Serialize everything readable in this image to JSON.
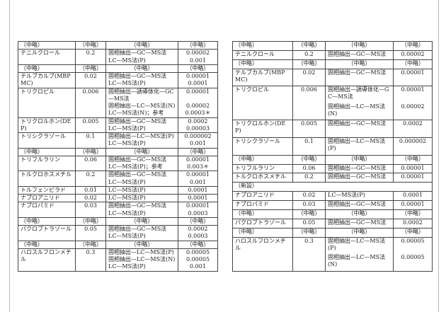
{
  "tables": [
    {
      "rows": [
        {
          "cells": [
            "（中略）",
            "（中略）",
            "（中略）",
            "（中略）"
          ]
        },
        {
          "name": "テニルクロール",
          "value": "0.2",
          "entries": [
            [
              "固相抽出—GC—MS法",
              "0.00002"
            ],
            [
              "LC—MS法(P)",
              "0.001"
            ]
          ]
        },
        {
          "cells": [
            "（中略）",
            "（中略）",
            "（中略）",
            "（中略）"
          ]
        },
        {
          "name": "テルブカルブ(MBPMC)",
          "value": "0.02",
          "entries": [
            [
              "固相抽出—GC—MS法",
              "0.00001"
            ],
            [
              "LC—MS法(P)",
              "0.0001"
            ]
          ]
        },
        {
          "name": "トリクロピル",
          "value": "0.006",
          "entries": [
            [
              "固相抽出—誘導体化—GC—MS法",
              "0.00001"
            ],
            [
              "固相抽出—LC—MS法(N)",
              "0.00002"
            ],
            [
              "LC—MS法(N)；参考",
              "0.0003＊"
            ]
          ]
        },
        {
          "name": "トリクロルホン(DEP)",
          "value": "0.005",
          "entries": [
            [
              "固相抽出—GC—MS法",
              "0.0002"
            ],
            [
              "LC—MS法(P)",
              "0.00003"
            ]
          ]
        },
        {
          "name": "トリシクラゾール",
          "value": "0.1",
          "entries": [
            [
              "固相抽出—LC—MS法(P)",
              "0.000002"
            ],
            [
              "LC—MS法(P)",
              "0.001"
            ]
          ]
        },
        {
          "cells": [
            "（中略）",
            "（中略）",
            "（中略）",
            "（中略）"
          ]
        },
        {
          "name": "トリフルラリン",
          "value": "0.06",
          "entries": [
            [
              "固相抽出—GC—MS法",
              "0.00001"
            ],
            [
              "LC—MS法(P)；参考",
              "0.003＊"
            ]
          ]
        },
        {
          "name": "トルクロホスメチル",
          "value": "0.2",
          "entries": [
            [
              "固相抽出—GC—MS法",
              "0.00001"
            ],
            [
              "LC—MS法(P)",
              "0.001"
            ]
          ]
        },
        {
          "name": "トルフェンピラド",
          "value": "0.01",
          "entries": [
            [
              "LC—MS法(P)",
              "0.0001"
            ]
          ]
        },
        {
          "name": "ナプロアニリド",
          "value": "0.02",
          "entries": [
            [
              "LC—MS法(P)",
              "0.0001"
            ]
          ]
        },
        {
          "name": "ナプロパミド",
          "value": "0.03",
          "entries": [
            [
              "固相抽出—GC—MS法",
              "0.00001"
            ],
            [
              "LC—MS法(P)",
              "0.0003"
            ]
          ]
        },
        {
          "cells": [
            "（中略）",
            "（中略）",
            "（中略）",
            "（中略）"
          ]
        },
        {
          "name": "パクロブトラゾール",
          "value": "0.05",
          "entries": [
            [
              "固相抽出—GC—MS法",
              "0.0002"
            ],
            [
              "LC—MS法(P)",
              "0.0003"
            ]
          ]
        },
        {
          "cells": [
            "（中略）",
            "（中略）",
            "（中略）",
            "（中略）"
          ]
        },
        {
          "name": "ハロスルフロンメチル",
          "value": "0.3",
          "entries": [
            [
              "固相抽出—LC—MS法(P)",
              "0.00005"
            ],
            [
              "固相抽出—LC—MS法(N)",
              "0.00005"
            ],
            [
              "LC—MS法(P)",
              "0.001"
            ]
          ]
        }
      ]
    },
    {
      "rows": [
        {
          "cells": [
            "（中略）",
            "（中略）",
            "（中略）",
            "（中略）"
          ]
        },
        {
          "name": "テニルクロール",
          "value": "0.2",
          "entries": [
            [
              "固相抽出—GC—MS法",
              "0.00002"
            ]
          ]
        },
        {
          "cells": [
            "（中略）",
            "（中略）",
            "（中略）",
            "（中略）"
          ]
        },
        {
          "name": "テルブカルブ(MBPMC)",
          "value": "0.02",
          "entries": [
            [
              "固相抽出—GC—MS法",
              "0.00001"
            ]
          ]
        },
        {
          "name": "トリクロピル",
          "value": "0.006",
          "entries": [
            [
              "固相抽出—誘導体化—GC—MS法",
              "0.00001"
            ],
            [
              "固相抽出—LC—MS法(N)",
              "0.00002"
            ]
          ]
        },
        {
          "name": "トリクロルホン(DEP)",
          "value": "0.005",
          "entries": [
            [
              "固相抽出—GC—MS法",
              "0.0002"
            ]
          ]
        },
        {
          "name": "トリシクラゾール",
          "value": "0.1",
          "entries": [
            [
              "固相抽出—LC—MS法(P)",
              "0.000002"
            ]
          ]
        },
        {
          "cells": [
            "（中略）",
            "（中略）",
            "（中略）",
            "（中略）"
          ]
        },
        {
          "name": "トリフルラリン",
          "value": "0.06",
          "entries": [
            [
              "固相抽出—GC—MS法",
              "0.00001"
            ]
          ]
        },
        {
          "name": "トルクロホスメチル",
          "value": "0.2",
          "entries": [
            [
              "固相抽出—GC—MS法",
              "0.00001"
            ]
          ]
        },
        {
          "note": "（新設）"
        },
        {
          "name": "ナプロアニリド",
          "value": "0.02",
          "entries": [
            [
              "LC—MS法(P)",
              "0.0001"
            ]
          ]
        },
        {
          "name": "ナプロパミド",
          "value": "0.03",
          "entries": [
            [
              "固相抽出—GC—MS法",
              "0.00001"
            ]
          ]
        },
        {
          "cells": [
            "（中略）",
            "（中略）",
            "（中略）",
            "（中略）"
          ]
        },
        {
          "name": "パクロブトラゾール",
          "value": "0.05",
          "entries": [
            [
              "固相抽出—GC—MS法",
              "0.0002"
            ]
          ]
        },
        {
          "cells": [
            "（中略）",
            "（中略）",
            "（中略）",
            "（中略）"
          ]
        },
        {
          "name": "ハロスルフロンメチル",
          "value": "0.3",
          "entries": [
            [
              "固相抽出—LC—MS法(P)",
              "0.00005"
            ],
            [
              "固相抽出—LC—MS法(N)",
              "0.00005"
            ]
          ]
        }
      ]
    }
  ]
}
